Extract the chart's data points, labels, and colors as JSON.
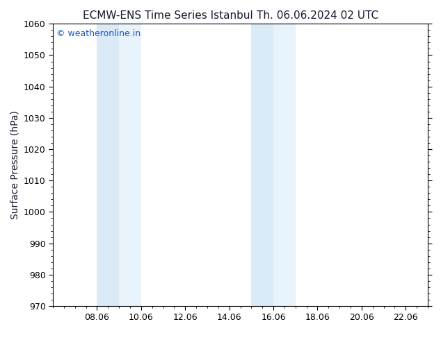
{
  "title_left": "ECMW-ENS Time Series Istanbul",
  "title_right": "Th. 06.06.2024 02 UTC",
  "ylabel": "Surface Pressure (hPa)",
  "ylim": [
    970,
    1060
  ],
  "yticks": [
    970,
    980,
    990,
    1000,
    1010,
    1020,
    1030,
    1040,
    1050,
    1060
  ],
  "xlim_start": 6.0,
  "xlim_end": 23.0,
  "xtick_positions": [
    8.0,
    10.0,
    12.0,
    14.0,
    16.0,
    18.0,
    20.0,
    22.0
  ],
  "xtick_labels": [
    "08.06",
    "10.06",
    "12.06",
    "14.06",
    "16.06",
    "18.06",
    "20.06",
    "22.06"
  ],
  "shaded_bands": [
    {
      "xmin": 8.0,
      "xmax": 9.0,
      "color": "#daeaf7"
    },
    {
      "xmin": 9.0,
      "xmax": 10.0,
      "color": "#e8f3fb"
    },
    {
      "xmin": 15.0,
      "xmax": 16.0,
      "color": "#daeaf7"
    },
    {
      "xmin": 16.0,
      "xmax": 17.0,
      "color": "#e8f3fb"
    }
  ],
  "band_color": "#ddeeff",
  "background_color": "#ffffff",
  "watermark_text": "© weatheronline.in",
  "watermark_color": "#1a56c8",
  "title_color": "#1a1a2e",
  "axis_label_color": "#1a1a2e",
  "tick_color": "#000000",
  "title_fontsize": 11,
  "ylabel_fontsize": 10,
  "tick_fontsize": 9,
  "watermark_fontsize": 9
}
